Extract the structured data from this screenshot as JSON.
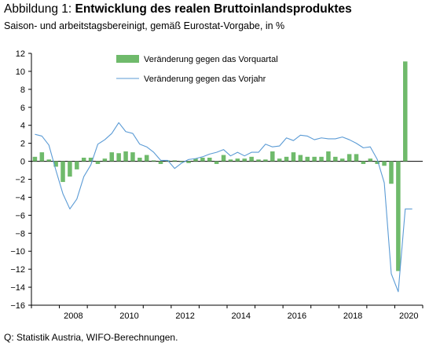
{
  "header": {
    "title_prefix": "Abbildung 1: ",
    "title_bold": "Entwicklung des realen Bruttoinlandsproduktes",
    "subtitle": "Saison- und arbeitstagsbereinigt, gemäß Eurostat-Vorgabe, in %"
  },
  "footer": {
    "source": "Q: Statistik Austria, WIFO-Berechnungen."
  },
  "colors": {
    "bar": "#6fba6b",
    "line": "#5b9bd5",
    "axis": "#000000"
  },
  "chart_data": {
    "type": "bar",
    "ylim": [
      -16,
      12
    ],
    "yticks": [
      -16,
      -14,
      -12,
      -10,
      -8,
      -6,
      -4,
      -2,
      0,
      2,
      4,
      6,
      8,
      10,
      12
    ],
    "x_start": "2007Q1",
    "x_end": "2020Q4",
    "xtick_labels": [
      "2008",
      "2010",
      "2012",
      "2014",
      "2016",
      "2018",
      "2020"
    ],
    "grid": false,
    "legend_position": "top-center",
    "series": [
      {
        "name": "Veränderung gegen das Vorquartal",
        "type": "bar",
        "periods": [
          "2007Q1",
          "2007Q2",
          "2007Q3",
          "2007Q4",
          "2008Q1",
          "2008Q2",
          "2008Q3",
          "2008Q4",
          "2009Q1",
          "2009Q2",
          "2009Q3",
          "2009Q4",
          "2010Q1",
          "2010Q2",
          "2010Q3",
          "2010Q4",
          "2011Q1",
          "2011Q2",
          "2011Q3",
          "2011Q4",
          "2012Q1",
          "2012Q2",
          "2012Q3",
          "2012Q4",
          "2013Q1",
          "2013Q2",
          "2013Q3",
          "2013Q4",
          "2014Q1",
          "2014Q2",
          "2014Q3",
          "2014Q4",
          "2015Q1",
          "2015Q2",
          "2015Q3",
          "2015Q4",
          "2016Q1",
          "2016Q2",
          "2016Q3",
          "2016Q4",
          "2017Q1",
          "2017Q2",
          "2017Q3",
          "2017Q4",
          "2018Q1",
          "2018Q2",
          "2018Q3",
          "2018Q4",
          "2019Q1",
          "2019Q2",
          "2019Q3",
          "2019Q4",
          "2020Q1",
          "2020Q2",
          "2020Q3"
        ],
        "values": [
          0.5,
          1.0,
          0.2,
          -0.6,
          -2.3,
          -1.7,
          -0.9,
          0.4,
          0.4,
          -0.3,
          0.3,
          1.0,
          0.9,
          1.1,
          1.0,
          0.4,
          0.7,
          0.1,
          -0.3,
          0.1,
          0.1,
          -0.1,
          -0.2,
          0.3,
          0.4,
          0.4,
          -0.3,
          0.7,
          0.2,
          0.3,
          0.3,
          0.5,
          0.2,
          0.2,
          1.1,
          0.3,
          0.5,
          1.0,
          0.7,
          0.5,
          0.5,
          0.5,
          1.1,
          0.5,
          0.3,
          0.8,
          0.8,
          -0.3,
          0.3,
          -0.3,
          -0.5,
          -2.5,
          -12.2,
          11.1,
          0.0
        ]
      },
      {
        "name": "Veränderung gegen das Vorjahr",
        "type": "line",
        "periods": [
          "2007Q1",
          "2007Q2",
          "2007Q3",
          "2007Q4",
          "2008Q1",
          "2008Q2",
          "2008Q3",
          "2008Q4",
          "2009Q1",
          "2009Q2",
          "2009Q3",
          "2009Q4",
          "2010Q1",
          "2010Q2",
          "2010Q3",
          "2010Q4",
          "2011Q1",
          "2011Q2",
          "2011Q3",
          "2011Q4",
          "2012Q1",
          "2012Q2",
          "2012Q3",
          "2012Q4",
          "2013Q1",
          "2013Q2",
          "2013Q3",
          "2013Q4",
          "2014Q1",
          "2014Q2",
          "2014Q3",
          "2014Q4",
          "2015Q1",
          "2015Q2",
          "2015Q3",
          "2015Q4",
          "2016Q1",
          "2016Q2",
          "2016Q3",
          "2016Q4",
          "2017Q1",
          "2017Q2",
          "2017Q3",
          "2017Q4",
          "2018Q1",
          "2018Q2",
          "2018Q3",
          "2018Q4",
          "2019Q1",
          "2019Q2",
          "2019Q3",
          "2019Q4",
          "2020Q1",
          "2020Q2",
          "2020Q3"
        ],
        "values": [
          3.0,
          2.8,
          1.8,
          -1.0,
          -3.6,
          -5.3,
          -4.2,
          -1.7,
          -0.4,
          1.9,
          2.4,
          3.1,
          4.3,
          3.3,
          3.1,
          1.9,
          1.6,
          1.0,
          0.1,
          0.1,
          -0.8,
          -0.2,
          0.2,
          0.3,
          0.5,
          0.8,
          1.0,
          1.3,
          0.6,
          1.0,
          0.6,
          1.0,
          1.0,
          1.9,
          1.6,
          1.7,
          2.6,
          2.3,
          2.9,
          2.8,
          2.4,
          2.6,
          2.5,
          2.5,
          2.7,
          2.4,
          2.0,
          1.5,
          1.6,
          0.2,
          -2.4,
          -12.5,
          -14.5,
          -5.3,
          -5.3
        ]
      }
    ]
  }
}
